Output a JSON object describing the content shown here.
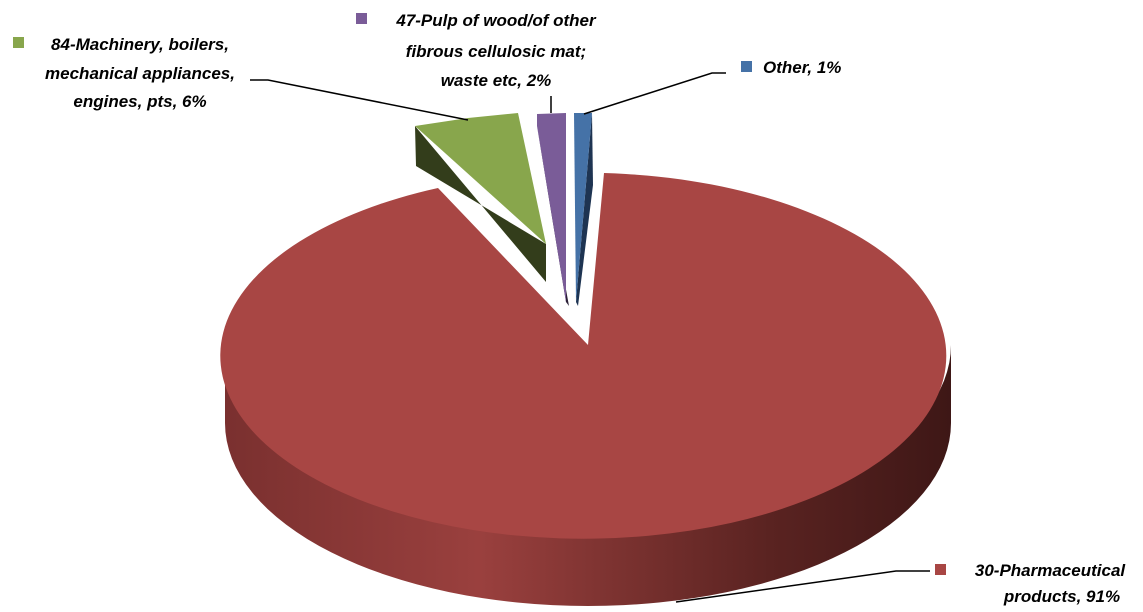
{
  "chart_data": {
    "type": "pie",
    "style": "3d-exploded",
    "series": [
      {
        "label": "30-Pharmaceutical products",
        "value": 91,
        "display_lines": [
          "30-Pharmaceutical",
          "products, 91%"
        ],
        "color": "#A84644"
      },
      {
        "label": "84-Machinery, boilers, mechanical appliances, engines, pts",
        "value": 6,
        "display_lines": [
          "84-Machinery, boilers,",
          "mechanical appliances,",
          "engines, pts, 6%"
        ],
        "color": "#88A64C"
      },
      {
        "label": "47-Pulp of wood/of other fibrous cellulosic mat; waste etc",
        "value": 2,
        "display_lines": [
          "47-Pulp of wood/of other",
          "fibrous cellulosic mat;",
          "waste etc, 2%"
        ],
        "color": "#7A5C98"
      },
      {
        "label": "Other",
        "value": 1,
        "display_lines": [
          "Other, 1%"
        ],
        "color": "#4572A7"
      }
    ]
  }
}
